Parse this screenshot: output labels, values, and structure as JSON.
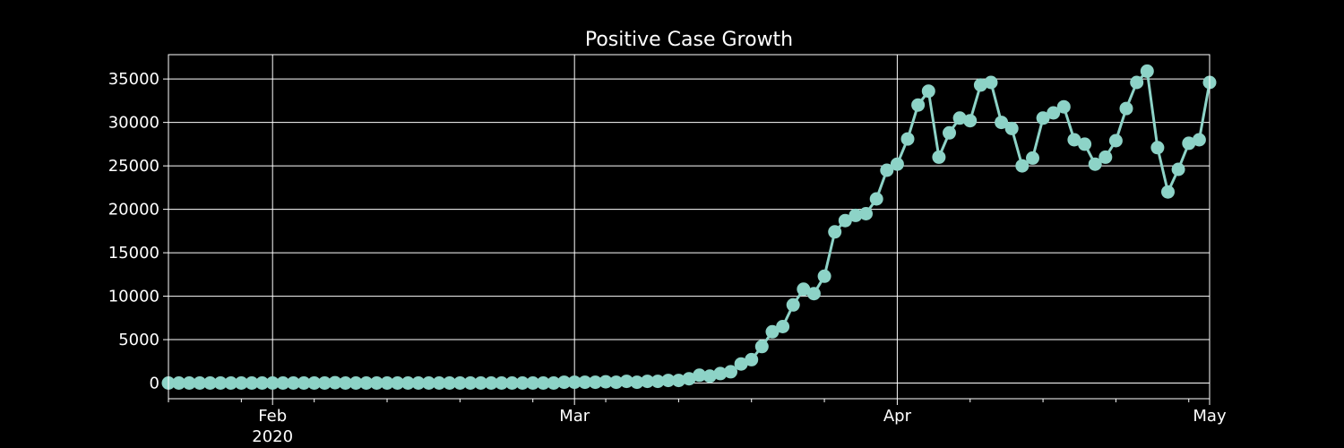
{
  "chart_data": {
    "type": "line",
    "title": "Positive Case Growth",
    "xlabel": "",
    "ylabel": "",
    "x_start": "2020-01-22",
    "x_range": [
      "2020-01-22",
      "2020-05-01"
    ],
    "ylim": [
      -1800,
      37800
    ],
    "grid": true,
    "legend": "none",
    "color": "#8dd3c7",
    "background": "#000000",
    "foreground": "#ffffff",
    "y_ticks": [
      0,
      5000,
      10000,
      15000,
      20000,
      25000,
      30000,
      35000
    ],
    "x_major_ticks": [
      {
        "date": "2020-02-01",
        "label": "Feb",
        "sublabel": "2020"
      },
      {
        "date": "2020-03-01",
        "label": "Mar",
        "sublabel": ""
      },
      {
        "date": "2020-04-01",
        "label": "Apr",
        "sublabel": ""
      },
      {
        "date": "2020-05-01",
        "label": "May",
        "sublabel": ""
      }
    ],
    "x_minor_ticks": [
      "2020-01-22",
      "2020-01-29",
      "2020-02-05",
      "2020-02-12",
      "2020-02-19",
      "2020-02-26",
      "2020-03-04",
      "2020-03-11",
      "2020-03-18",
      "2020-03-25",
      "2020-04-08",
      "2020-04-15",
      "2020-04-22",
      "2020-04-29"
    ],
    "values": [
      0,
      0,
      0,
      0,
      0,
      0,
      0,
      0,
      0,
      0,
      0,
      0,
      0,
      0,
      0,
      0,
      50,
      0,
      0,
      0,
      0,
      0,
      0,
      0,
      0,
      0,
      0,
      0,
      0,
      0,
      0,
      0,
      0,
      0,
      0,
      0,
      0,
      0,
      100,
      100,
      100,
      100,
      150,
      100,
      200,
      100,
      200,
      200,
      300,
      300,
      500,
      900,
      800,
      1100,
      1300,
      2200,
      2700,
      4200,
      5900,
      6500,
      9000,
      10800,
      10300,
      12300,
      17400,
      18700,
      19300,
      19500,
      21200,
      24500,
      25200,
      28100,
      32000,
      33600,
      26000,
      28800,
      30500,
      30200,
      34300,
      34600,
      30000,
      29300,
      25000,
      25900,
      30500,
      31100,
      31800,
      28000,
      27500,
      25200,
      26000,
      27900,
      31600,
      34600,
      35900,
      27100,
      22000,
      24600,
      27600,
      28000,
      34600
    ]
  }
}
